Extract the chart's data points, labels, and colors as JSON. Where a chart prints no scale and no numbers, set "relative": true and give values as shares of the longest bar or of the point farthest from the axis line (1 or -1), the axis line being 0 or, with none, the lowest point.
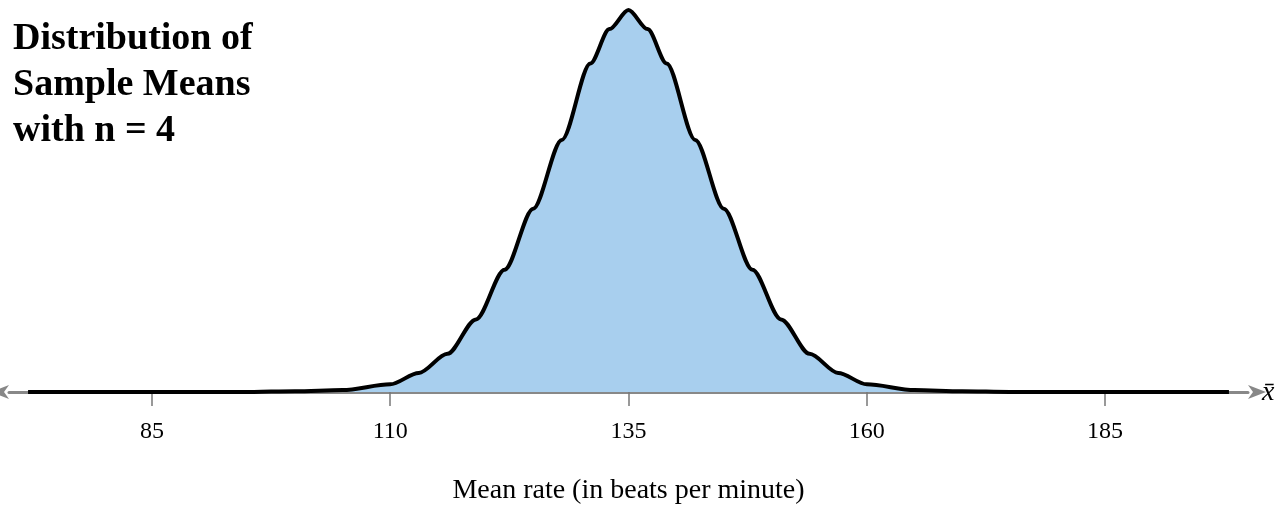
{
  "chart_data": {
    "type": "area",
    "title": "Distribution of Sample Means with n = 4",
    "xlabel": "Mean rate (in beats per minute)",
    "annotations": [
      "x̄"
    ],
    "relative": true,
    "x": [
      72,
      85,
      95,
      100,
      105,
      110,
      113,
      116,
      119,
      122,
      125,
      128,
      131,
      133,
      135,
      137,
      139,
      142,
      145,
      148,
      151,
      154,
      157,
      160,
      165,
      170,
      175,
      185,
      198
    ],
    "series": [
      {
        "color": "#a8cfee",
        "values": [
          0,
          0,
          0,
          0.002,
          0.005,
          0.02,
          0.05,
          0.1,
          0.19,
          0.32,
          0.48,
          0.66,
          0.86,
          0.95,
          1,
          0.95,
          0.86,
          0.66,
          0.48,
          0.32,
          0.19,
          0.1,
          0.05,
          0.02,
          0.005,
          0.002,
          0,
          0,
          0
        ]
      }
    ],
    "xlim": [
      70,
      200
    ],
    "xticks": [
      85,
      110,
      135,
      160,
      185
    ],
    "tick_labels": "x",
    "grid": false,
    "marker": "none",
    "line_style": "solid"
  }
}
